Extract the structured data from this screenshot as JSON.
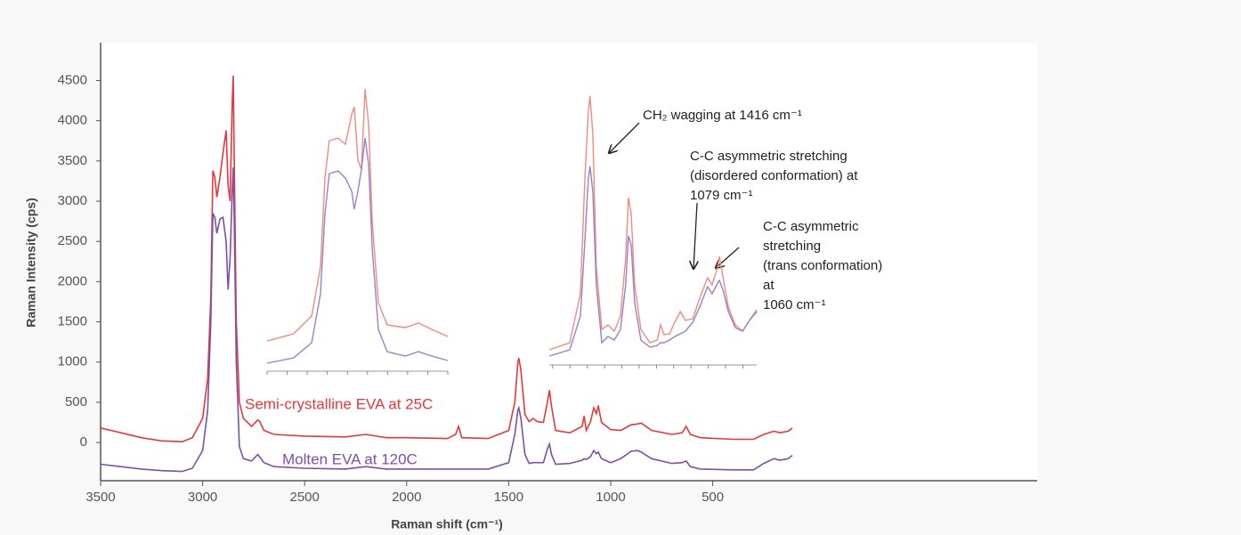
{
  "chart_data": [
    {
      "type": "line",
      "x_label": "Raman shift (cm⁻¹)",
      "y_label": "Raman Intensity (cps)",
      "xlim": [
        3500,
        -1090
      ],
      "ylim": [
        -475,
        4970
      ],
      "xticks": [
        3500,
        3000,
        2500,
        2000,
        1500,
        1000,
        500
      ],
      "yticks": [
        0,
        500,
        1000,
        1500,
        2000,
        2500,
        3000,
        3500,
        4000,
        4500
      ],
      "x": [
        3500,
        3400,
        3300,
        3200,
        3100,
        3050,
        3000,
        2975,
        2960,
        2950,
        2940,
        2930,
        2915,
        2900,
        2885,
        2875,
        2865,
        2855,
        2850,
        2845,
        2835,
        2820,
        2800,
        2760,
        2730,
        2720,
        2700,
        2650,
        2500,
        2300,
        2200,
        2100,
        2000,
        1800,
        1760,
        1745,
        1730,
        1600,
        1500,
        1470,
        1455,
        1450,
        1440,
        1420,
        1400,
        1380,
        1360,
        1330,
        1310,
        1300,
        1290,
        1270,
        1200,
        1140,
        1130,
        1120,
        1100,
        1083,
        1070,
        1061,
        1045,
        1000,
        950,
        900,
        870,
        850,
        800,
        700,
        650,
        630,
        610,
        560,
        400,
        300,
        250,
        200,
        170,
        130,
        110
      ],
      "series": [
        {
          "name": "Semi-crystalline EVA at 25C",
          "color": "#e5383b",
          "values": [
            180,
            120,
            60,
            20,
            10,
            60,
            300,
            800,
            1800,
            3380,
            3300,
            3050,
            3300,
            3600,
            3880,
            3200,
            3000,
            4200,
            4560,
            3500,
            1500,
            500,
            300,
            200,
            280,
            260,
            150,
            100,
            80,
            70,
            100,
            60,
            60,
            50,
            100,
            200,
            60,
            50,
            150,
            500,
            1000,
            1050,
            900,
            350,
            260,
            300,
            260,
            250,
            500,
            650,
            450,
            150,
            120,
            200,
            330,
            150,
            250,
            430,
            360,
            460,
            250,
            160,
            150,
            220,
            230,
            240,
            150,
            100,
            120,
            200,
            100,
            60,
            40,
            40,
            100,
            140,
            120,
            140,
            180
          ]
        },
        {
          "name": "Molten EVA at 120C",
          "color": "#7d4fa8",
          "values": [
            -270,
            -300,
            -330,
            -350,
            -360,
            -320,
            -100,
            400,
            1500,
            2850,
            2800,
            2600,
            2780,
            2800,
            2500,
            1900,
            2300,
            3100,
            3420,
            2800,
            1000,
            -50,
            -200,
            -230,
            -150,
            -180,
            -250,
            -300,
            -320,
            -330,
            -300,
            -330,
            -330,
            -330,
            -330,
            -330,
            -330,
            -330,
            -250,
            100,
            400,
            430,
            300,
            -150,
            -260,
            -250,
            -250,
            -250,
            -80,
            -20,
            -150,
            -270,
            -260,
            -220,
            -200,
            -210,
            -180,
            -100,
            -140,
            -120,
            -200,
            -250,
            -200,
            -110,
            -100,
            -120,
            -200,
            -260,
            -250,
            -230,
            -300,
            -330,
            -340,
            -340,
            -260,
            -200,
            -220,
            -200,
            -160
          ]
        }
      ],
      "annotations": [
        {
          "lines": [
            "CH₂ wagging at 1416 cm⁻¹"
          ]
        },
        {
          "lines": [
            "C-C asymmetric stretching",
            "(disordered conformation) at",
            "1079 cm⁻¹"
          ]
        },
        {
          "lines": [
            "C-C asymmetric",
            "stretching",
            "(trans conformation)",
            "at",
            "1060 cm⁻¹"
          ]
        }
      ]
    },
    {
      "type": "line",
      "xlim": [
        3100,
        2650
      ],
      "ylim": [
        -514,
        4640
      ],
      "xticks": [
        3100,
        3050,
        3000,
        2950,
        2900,
        2850,
        2800,
        2750,
        2700,
        2650
      ],
      "x": [
        3100,
        3034,
        2989,
        2967,
        2956,
        2945,
        2923,
        2905,
        2889,
        2883,
        2874,
        2865,
        2856,
        2847,
        2838,
        2823,
        2801,
        2756,
        2723,
        2690,
        2650
      ],
      "series": [
        {
          "color": "#f08a82",
          "values": [
            30,
            158,
            478,
            1358,
            2958,
            3630,
            3678,
            3566,
            4110,
            4238,
            3278,
            3118,
            4558,
            3918,
            2158,
            718,
            318,
            270,
            350,
            238,
            110
          ]
        },
        {
          "color": "#9a80c6",
          "values": [
            -370,
            -274,
            -2,
            878,
            2318,
            3038,
            3086,
            2958,
            2718,
            2398,
            2718,
            3118,
            3678,
            3198,
            1678,
            238,
            -162,
            -242,
            -162,
            -242,
            -322
          ]
        }
      ]
    },
    {
      "type": "line",
      "xlim": [
        1560,
        960
      ],
      "ylim": [
        -514,
        4526
      ],
      "xticks": [
        1550,
        1500,
        1450,
        1400,
        1350,
        1300,
        1250,
        1200,
        1150,
        1100,
        1050,
        1000
      ],
      "x": [
        1560,
        1501,
        1470,
        1457,
        1447,
        1442,
        1434,
        1424,
        1408,
        1390,
        1372,
        1354,
        1339,
        1331,
        1323,
        1313,
        1295,
        1269,
        1248,
        1238,
        1228,
        1212,
        1197,
        1181,
        1166,
        1145,
        1125,
        1102,
        1089,
        1073,
        1068,
        1058,
        1042,
        1022,
        1001,
        981,
        960
      ],
      "series": [
        {
          "color": "#f08a82",
          "values": [
            -242,
            -114,
            766,
            2846,
            4046,
            4318,
            3646,
            1246,
            126,
            206,
            94,
            366,
            1406,
            2494,
            2206,
            926,
            126,
            -114,
            -66,
            206,
            30,
            46,
            254,
            446,
            286,
            318,
            686,
            1054,
            926,
            1246,
            1438,
            1086,
            526,
            206,
            94,
            286,
            478
          ]
        },
        {
          "color": "#9a80c6",
          "values": [
            -354,
            -242,
            366,
            1726,
            2846,
            3054,
            2606,
            926,
            -114,
            -2,
            -66,
            126,
            926,
            1806,
            1646,
            606,
            -66,
            -194,
            -162,
            -114,
            -114,
            -66,
            -2,
            46,
            94,
            254,
            526,
            894,
            766,
            958,
            1006,
            846,
            446,
            158,
            94,
            286,
            446
          ]
        }
      ]
    }
  ]
}
